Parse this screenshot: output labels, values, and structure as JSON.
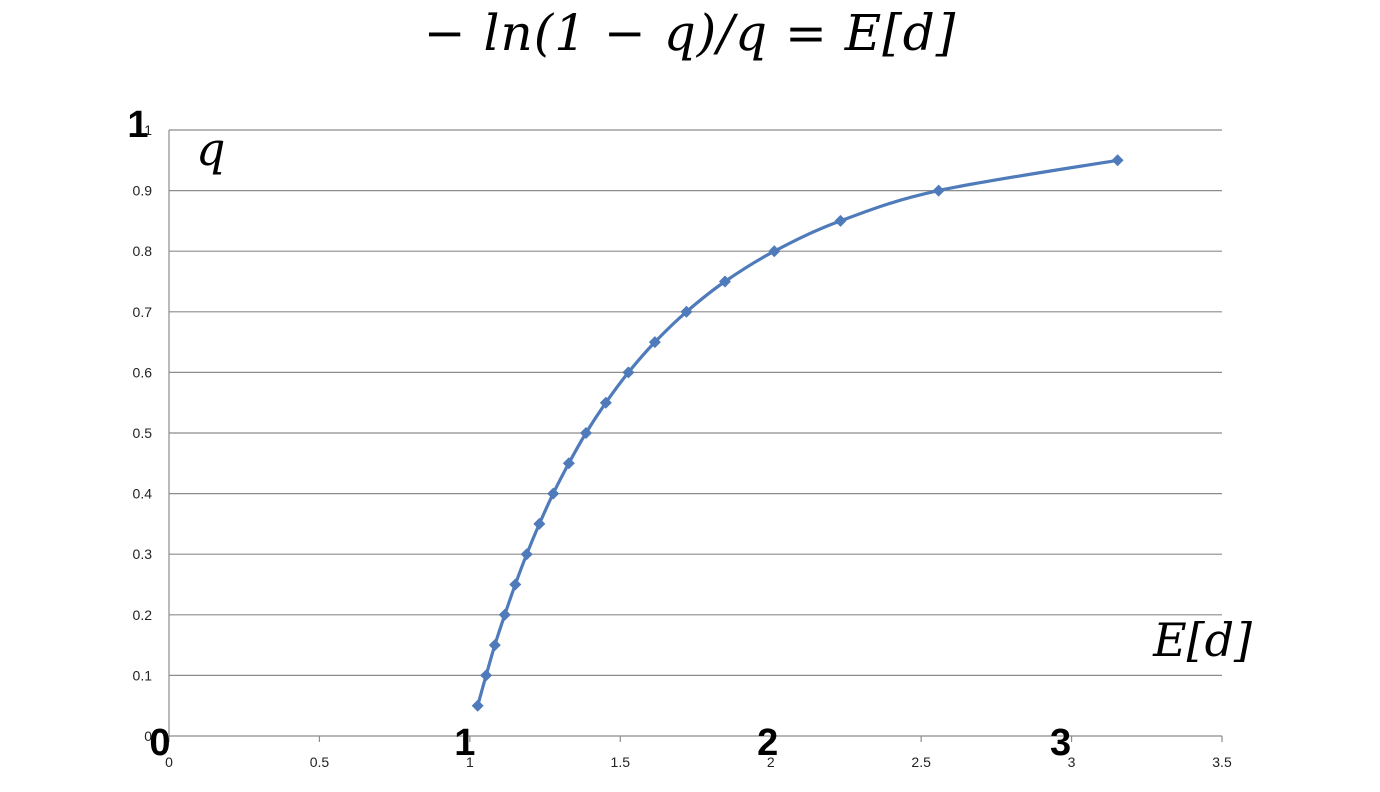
{
  "title": "− ln(1 − q)/q  = E[d]",
  "chart_data": {
    "type": "scatter",
    "title": "− ln(1 − q)/q  = E[d]",
    "xlabel": "E[d]",
    "ylabel": "q",
    "xlim": [
      0,
      3.5
    ],
    "ylim": [
      0,
      1
    ],
    "x_ticks": [
      "0",
      "0.5",
      "1",
      "1.5",
      "2",
      "2.5",
      "3",
      "3.5"
    ],
    "y_ticks": [
      "0",
      "0.1",
      "0.2",
      "0.3",
      "0.4",
      "0.5",
      "0.6",
      "0.7",
      "0.8",
      "0.9",
      "1"
    ],
    "grid": "horizontal",
    "line": "smooth",
    "marker": "diamond",
    "color": "#4f7bba",
    "series": [
      {
        "x": [
          1.026,
          1.054,
          1.083,
          1.116,
          1.151,
          1.189,
          1.231,
          1.277,
          1.329,
          1.386,
          1.452,
          1.527,
          1.615,
          1.72,
          1.848,
          2.012,
          2.232,
          2.558,
          3.153
        ],
        "y": [
          0.05,
          0.1,
          0.15,
          0.2,
          0.25,
          0.3,
          0.35,
          0.4,
          0.45,
          0.5,
          0.55,
          0.6,
          0.65,
          0.7,
          0.75,
          0.8,
          0.85,
          0.9,
          0.95
        ]
      }
    ],
    "overlay_labels": {
      "y_one": "1",
      "x_zero": "0",
      "x_one": "1",
      "x_two": "2",
      "x_three": "3"
    }
  }
}
